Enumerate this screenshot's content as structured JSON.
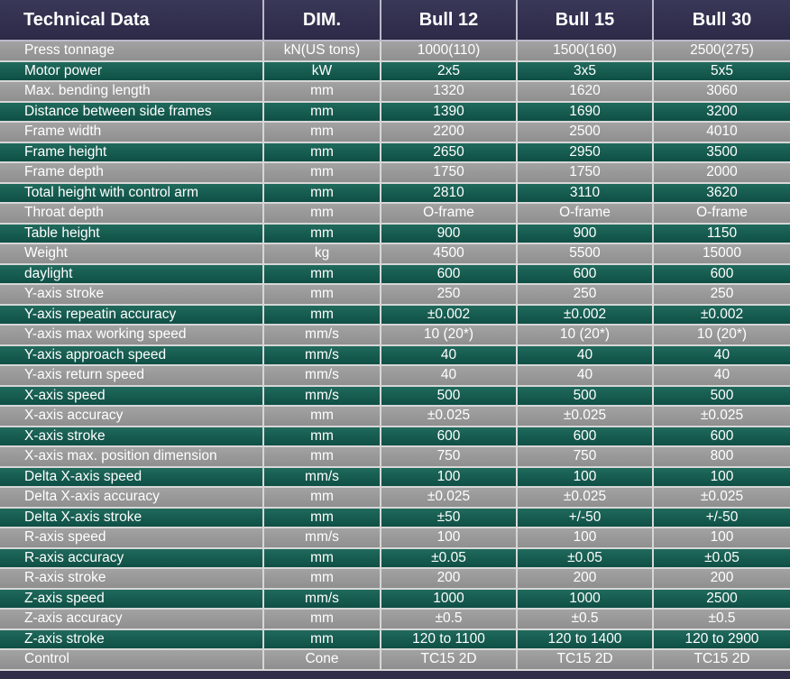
{
  "header": {
    "technical_data": "Technical Data",
    "dim": "DIM.",
    "model_1": "Bull 12",
    "model_2": "Bull 15",
    "model_3": "Bull 30"
  },
  "rows": [
    {
      "name": "Press tonnage",
      "dim": "kN(US tons)",
      "v1": "1000(110)",
      "v2": "1500(160)",
      "v3": "2500(275)"
    },
    {
      "name": "Motor power",
      "dim": "kW",
      "v1": "2x5",
      "v2": "3x5",
      "v3": "5x5"
    },
    {
      "name": "Max. bending length",
      "dim": "mm",
      "v1": "1320",
      "v2": "1620",
      "v3": "3060"
    },
    {
      "name": "Distance between side frames",
      "dim": "mm",
      "v1": "1390",
      "v2": "1690",
      "v3": "3200"
    },
    {
      "name": "Frame width",
      "dim": "mm",
      "v1": "2200",
      "v2": "2500",
      "v3": "4010"
    },
    {
      "name": "Frame height",
      "dim": "mm",
      "v1": "2650",
      "v2": "2950",
      "v3": "3500"
    },
    {
      "name": "Frame depth",
      "dim": "mm",
      "v1": "1750",
      "v2": "1750",
      "v3": "2000"
    },
    {
      "name": "Total height with control arm",
      "dim": "mm",
      "v1": "2810",
      "v2": "3110",
      "v3": "3620"
    },
    {
      "name": "Throat depth",
      "dim": "mm",
      "v1": "O-frame",
      "v2": "O-frame",
      "v3": "O-frame"
    },
    {
      "name": "Table height",
      "dim": "mm",
      "v1": "900",
      "v2": "900",
      "v3": "1150"
    },
    {
      "name": "Weight",
      "dim": "kg",
      "v1": "4500",
      "v2": "5500",
      "v3": "15000"
    },
    {
      "name": "daylight",
      "dim": "mm",
      "v1": "600",
      "v2": "600",
      "v3": "600"
    },
    {
      "name": "Y-axis stroke",
      "dim": "mm",
      "v1": "250",
      "v2": "250",
      "v3": "250"
    },
    {
      "name": "Y-axis repeatin accuracy",
      "dim": "mm",
      "v1": "±0.002",
      "v2": "±0.002",
      "v3": "±0.002"
    },
    {
      "name": "Y-axis max working speed",
      "dim": "mm/s",
      "v1": "10 (20*)",
      "v2": "10 (20*)",
      "v3": "10 (20*)"
    },
    {
      "name": "Y-axis approach speed",
      "dim": "mm/s",
      "v1": "40",
      "v2": "40",
      "v3": "40"
    },
    {
      "name": "Y-axis return speed",
      "dim": "mm/s",
      "v1": "40",
      "v2": "40",
      "v3": "40"
    },
    {
      "name": "X-axis speed",
      "dim": "mm/s",
      "v1": "500",
      "v2": "500",
      "v3": "500"
    },
    {
      "name": "X-axis accuracy",
      "dim": "mm",
      "v1": "±0.025",
      "v2": "±0.025",
      "v3": "±0.025"
    },
    {
      "name": "X-axis stroke",
      "dim": "mm",
      "v1": "600",
      "v2": "600",
      "v3": "600"
    },
    {
      "name": "X-axis max. position dimension",
      "dim": "mm",
      "v1": "750",
      "v2": "750",
      "v3": "800"
    },
    {
      "name": "Delta X-axis speed",
      "dim": "mm/s",
      "v1": "100",
      "v2": "100",
      "v3": "100"
    },
    {
      "name": "Delta X-axis accuracy",
      "dim": "mm",
      "v1": "±0.025",
      "v2": "±0.025",
      "v3": "±0.025"
    },
    {
      "name": "Delta X-axis stroke",
      "dim": "mm",
      "v1": "±50",
      "v2": "+/-50",
      "v3": "+/-50"
    },
    {
      "name": "R-axis speed",
      "dim": "mm/s",
      "v1": "100",
      "v2": "100",
      "v3": "100"
    },
    {
      "name": "R-axis accuracy",
      "dim": "mm",
      "v1": "±0.05",
      "v2": "±0.05",
      "v3": "±0.05"
    },
    {
      "name": "R-axis stroke",
      "dim": "mm",
      "v1": "200",
      "v2": "200",
      "v3": "200"
    },
    {
      "name": "Z-axis speed",
      "dim": "mm/s",
      "v1": "1000",
      "v2": "1000",
      "v3": "2500"
    },
    {
      "name": "Z-axis accuracy",
      "dim": "mm",
      "v1": "±0.5",
      "v2": "±0.5",
      "v3": "±0.5"
    },
    {
      "name": "Z-axis stroke",
      "dim": "mm",
      "v1": "120 to 1100",
      "v2": "120 to 1400",
      "v3": "120 to 2900"
    },
    {
      "name": "Control",
      "dim": "Cone",
      "v1": "TC15 2D",
      "v2": "TC15 2D",
      "v3": "TC15 2D"
    }
  ]
}
